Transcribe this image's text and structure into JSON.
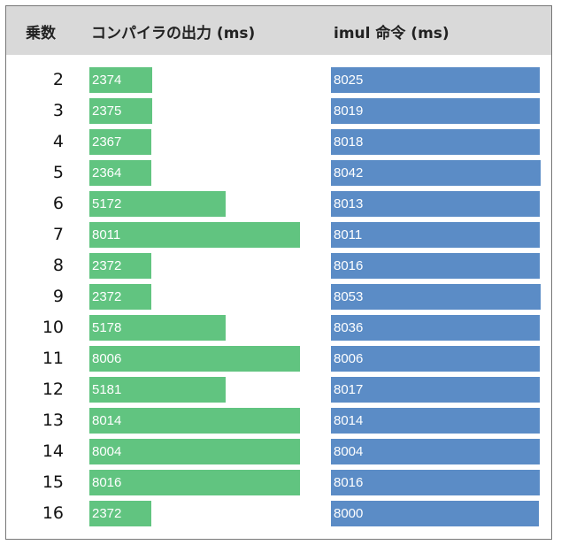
{
  "chart_data": {
    "type": "table",
    "columns": [
      "乗数",
      "コンパイラの出力 (ms)",
      "imul 命令 (ms)"
    ],
    "rows": [
      {
        "multiplier": "2",
        "compiler": 2374,
        "imul": 8025
      },
      {
        "multiplier": "3",
        "compiler": 2375,
        "imul": 8019
      },
      {
        "multiplier": "4",
        "compiler": 2367,
        "imul": 8018
      },
      {
        "multiplier": "5",
        "compiler": 2364,
        "imul": 8042
      },
      {
        "multiplier": "6",
        "compiler": 5172,
        "imul": 8013
      },
      {
        "multiplier": "7",
        "compiler": 8011,
        "imul": 8011
      },
      {
        "multiplier": "8",
        "compiler": 2372,
        "imul": 8016
      },
      {
        "multiplier": "9",
        "compiler": 2372,
        "imul": 8053
      },
      {
        "multiplier": "10",
        "compiler": 5178,
        "imul": 8036
      },
      {
        "multiplier": "11",
        "compiler": 8006,
        "imul": 8006
      },
      {
        "multiplier": "12",
        "compiler": 5181,
        "imul": 8017
      },
      {
        "multiplier": "13",
        "compiler": 8014,
        "imul": 8014
      },
      {
        "multiplier": "14",
        "compiler": 8004,
        "imul": 8004
      },
      {
        "multiplier": "15",
        "compiler": 8016,
        "imul": 8016
      },
      {
        "multiplier": "16",
        "compiler": 2372,
        "imul": 8000
      }
    ],
    "bar_colors": {
      "compiler": "#61c480",
      "imul": "#5b8cc6"
    }
  }
}
